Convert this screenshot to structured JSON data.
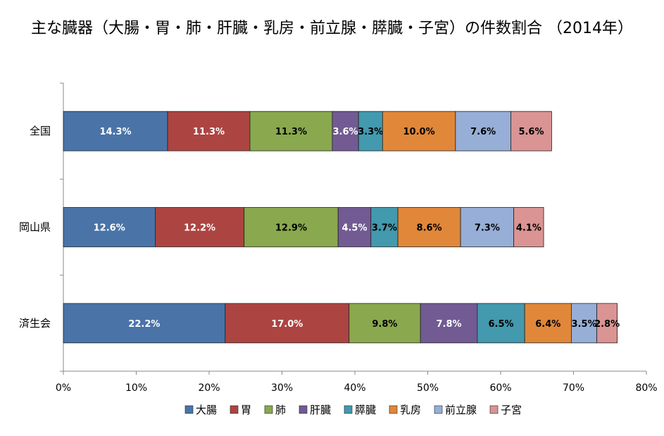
{
  "chart_data": {
    "type": "bar",
    "orientation": "horizontal",
    "stacked": true,
    "title": "主な臓器（大腸・胃・肺・肝臓・乳房・前立腺・膵臓・子宮）の件数割合 （2014年）",
    "categories": [
      "全国",
      "岡山県",
      "済生会"
    ],
    "xlim": [
      0,
      80
    ],
    "x_ticks": [
      "0%",
      "10%",
      "20%",
      "30%",
      "40%",
      "50%",
      "60%",
      "70%",
      "80%"
    ],
    "grid": false,
    "legend_position": "bottom",
    "series": [
      {
        "name": "大腸",
        "color": "#4A74A8",
        "label_color": "#ffffff",
        "values": [
          14.3,
          12.6,
          22.2
        ],
        "labels": [
          "14.3%",
          "12.6%",
          "22.2%"
        ]
      },
      {
        "name": "胃",
        "color": "#AC4542",
        "label_color": "#ffffff",
        "values": [
          11.3,
          12.2,
          17.0
        ],
        "labels": [
          "11.3%",
          "12.2%",
          "17.0%"
        ]
      },
      {
        "name": "肺",
        "color": "#8AA84E",
        "label_color": "#000000",
        "values": [
          11.3,
          12.9,
          9.8
        ],
        "labels": [
          "11.3%",
          "12.9%",
          "9.8%"
        ]
      },
      {
        "name": "肝臓",
        "color": "#725B93",
        "label_color": "#ffffff",
        "values": [
          3.6,
          4.5,
          7.8
        ],
        "labels": [
          "3.6%",
          "4.5%",
          "7.8%"
        ]
      },
      {
        "name": "膵臓",
        "color": "#4399AD",
        "label_color": "#000000",
        "values": [
          3.3,
          3.7,
          6.5
        ],
        "labels": [
          "3.3%",
          "3.7%",
          "6.5%"
        ]
      },
      {
        "name": "乳房",
        "color": "#E0873A",
        "label_color": "#000000",
        "values": [
          10.0,
          8.6,
          6.4
        ],
        "labels": [
          "10.0%",
          "8.6%",
          "6.4%"
        ]
      },
      {
        "name": "前立腺",
        "color": "#97AED6",
        "label_color": "#000000",
        "values": [
          7.6,
          7.3,
          3.5
        ],
        "labels": [
          "7.6%",
          "7.3%",
          "3.5%"
        ]
      },
      {
        "name": "子宮",
        "color": "#D99493",
        "label_color": "#000000",
        "values": [
          5.6,
          4.1,
          2.8
        ],
        "labels": [
          "5.6%",
          "4.1%",
          "2.8%"
        ]
      }
    ]
  }
}
